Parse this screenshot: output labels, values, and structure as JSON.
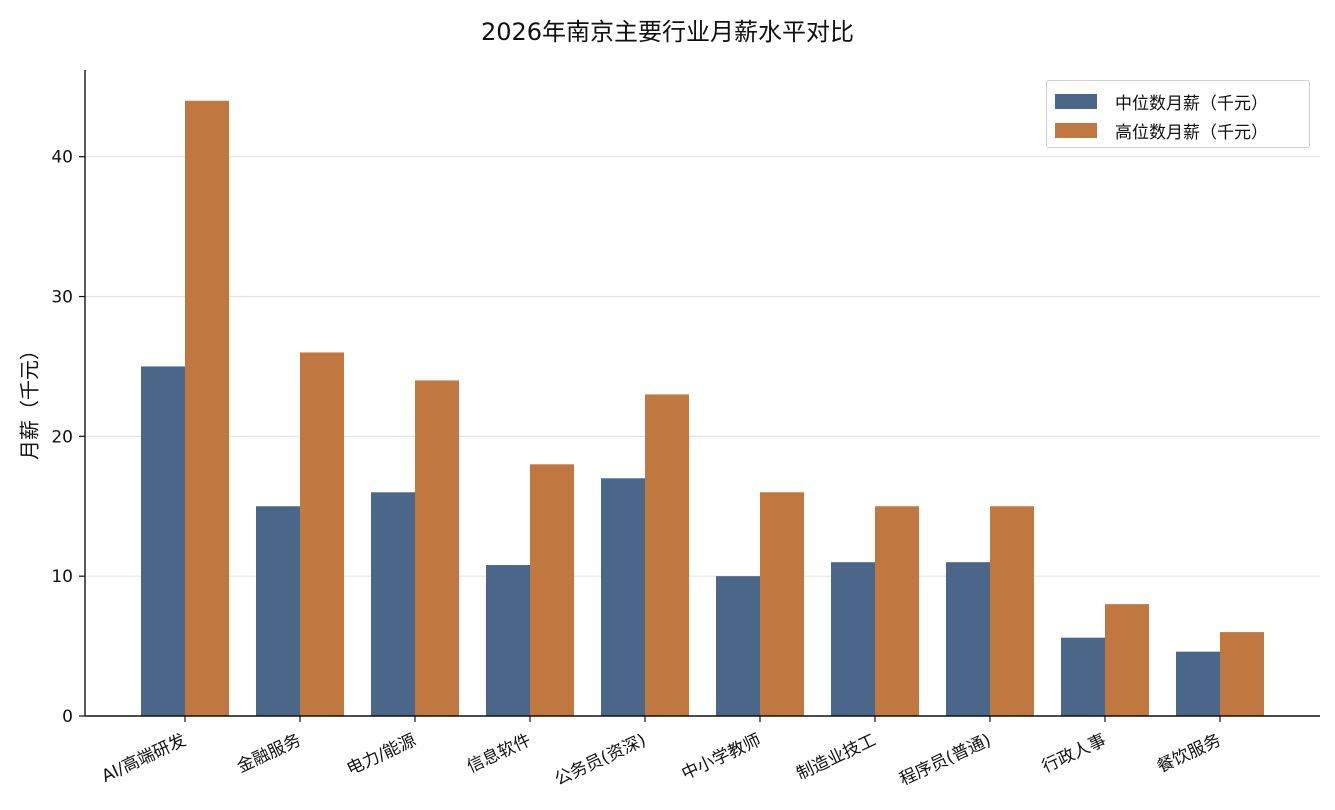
{
  "chart_data": {
    "type": "bar",
    "title": "2026年南京主要行业月薪水平对比",
    "xlabel": "",
    "ylabel": "月薪（千元）",
    "ylim": [
      0,
      46.2
    ],
    "yticks": [
      0,
      10,
      20,
      30,
      40
    ],
    "categories": [
      "AI/高端研发",
      "金融服务",
      "电力/能源",
      "信息软件",
      "公务员(资深)",
      "中小学教师",
      "制造业技工",
      "程序员(普通)",
      "行政人事",
      "餐饮服务"
    ],
    "series": [
      {
        "name": "中位数月薪（千元）",
        "color": "#4a6789",
        "values": [
          25,
          15,
          16,
          10.8,
          17,
          10,
          11,
          11,
          5.6,
          4.6
        ]
      },
      {
        "name": "高位数月薪（千元）",
        "color": "#c07840",
        "values": [
          44,
          26,
          24,
          18,
          23,
          16,
          15,
          15,
          8,
          6
        ]
      }
    ],
    "grid": "y-major",
    "legend": "top-right"
  }
}
